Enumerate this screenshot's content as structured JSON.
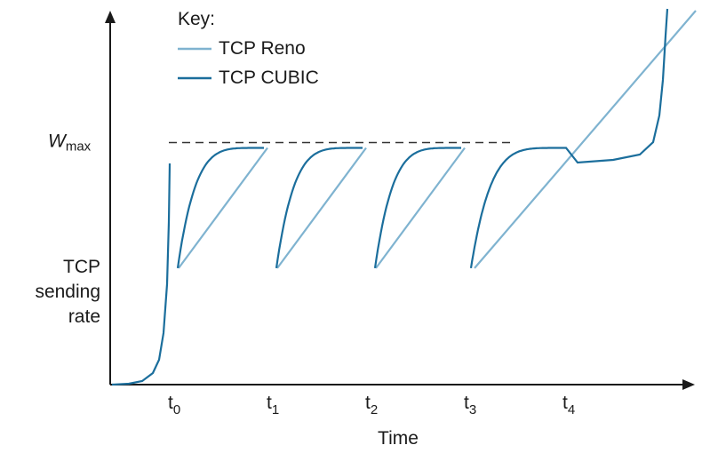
{
  "chart_data": {
    "type": "line",
    "title": "",
    "xlabel": "Time",
    "ylabel": [
      "TCP",
      "sending",
      "rate"
    ],
    "y_reference": {
      "symbol": "W",
      "subscript": "max"
    },
    "x_ticks": [
      {
        "base": "t",
        "sub": "0"
      },
      {
        "base": "t",
        "sub": "1"
      },
      {
        "base": "t",
        "sub": "2"
      },
      {
        "base": "t",
        "sub": "3"
      },
      {
        "base": "t",
        "sub": "4"
      }
    ],
    "legend": {
      "title": "Key:",
      "position": "top-center",
      "entries": [
        {
          "name": "TCP Reno",
          "color": "#7fb3d0"
        },
        {
          "name": "TCP CUBIC",
          "color": "#1b6e9c"
        }
      ]
    },
    "wmax_level": 0.63,
    "drop_level": 0.31,
    "series": [
      {
        "name": "TCP Reno",
        "color": "#7fb3d0",
        "shape": "sawtooth",
        "description_points": [
          [
            0,
            0.31
          ],
          [
            1,
            0.63
          ],
          [
            1,
            0.31
          ],
          [
            2,
            0.63
          ],
          [
            2,
            0.31
          ],
          [
            3,
            0.63
          ],
          [
            3,
            0.31
          ],
          [
            4,
            0.63
          ],
          [
            5,
            1.0
          ]
        ]
      },
      {
        "name": "TCP CUBIC",
        "color": "#1b6e9c",
        "shape": "cubic-concave-then-convex",
        "description_points": [
          [
            -0.6,
            0
          ],
          [
            0,
            0.63
          ],
          [
            0,
            0.31
          ],
          [
            1,
            0.63
          ],
          [
            1,
            0.31
          ],
          [
            2,
            0.63
          ],
          [
            2,
            0.31
          ],
          [
            3,
            0.63
          ],
          [
            3,
            0.31
          ],
          [
            4,
            0.63
          ],
          [
            5,
            1.0
          ]
        ]
      }
    ],
    "axis_color": "#1a1a1a",
    "reference_line": "dashed"
  }
}
